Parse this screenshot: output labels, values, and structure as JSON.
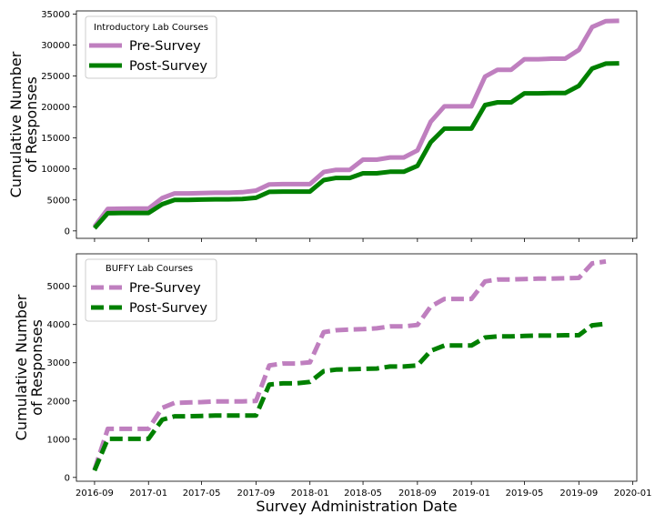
{
  "xlabel": "Survey Administration Date",
  "x_ticks": [
    "2016-09",
    "2017-01",
    "2017-05",
    "2017-09",
    "2018-01",
    "2018-05",
    "2018-09",
    "2019-01",
    "2019-05",
    "2019-09",
    "2020-01"
  ],
  "chart_data": [
    {
      "type": "line",
      "legend_title": "Introductory Lab Courses",
      "legend_position": "top-left",
      "ylabel_line1": "Cumulative Number",
      "ylabel_line2": "of Responses",
      "ylim": [
        -1200,
        35500
      ],
      "y_ticks": [
        0,
        5000,
        10000,
        15000,
        20000,
        25000,
        30000,
        35000
      ],
      "y_tick_labels": [
        "0",
        "5000",
        "10000",
        "15000",
        "20000",
        "25000",
        "30000",
        "35000"
      ],
      "xlim": [
        "2016-07-22",
        "2020-01-10"
      ],
      "grid": false,
      "series": [
        {
          "name": "Pre-Survey",
          "color": "#bf7fbf",
          "dash": "solid",
          "points": [
            [
              "2016-09-01",
              700
            ],
            [
              "2016-10-01",
              3550
            ],
            [
              "2016-11-01",
              3580
            ],
            [
              "2016-12-01",
              3600
            ],
            [
              "2017-01-01",
              3600
            ],
            [
              "2017-02-01",
              5300
            ],
            [
              "2017-03-01",
              6050
            ],
            [
              "2017-04-01",
              6050
            ],
            [
              "2017-05-01",
              6100
            ],
            [
              "2017-06-01",
              6150
            ],
            [
              "2017-07-01",
              6150
            ],
            [
              "2017-08-01",
              6250
            ],
            [
              "2017-09-01",
              6500
            ],
            [
              "2017-10-01",
              7500
            ],
            [
              "2017-11-01",
              7550
            ],
            [
              "2017-12-01",
              7550
            ],
            [
              "2018-01-01",
              7550
            ],
            [
              "2018-02-01",
              9500
            ],
            [
              "2018-03-01",
              9850
            ],
            [
              "2018-04-01",
              9850
            ],
            [
              "2018-05-01",
              11500
            ],
            [
              "2018-06-01",
              11500
            ],
            [
              "2018-07-01",
              11850
            ],
            [
              "2018-08-01",
              11850
            ],
            [
              "2018-09-01",
              13000
            ],
            [
              "2018-10-01",
              17600
            ],
            [
              "2018-11-01",
              20100
            ],
            [
              "2018-12-01",
              20100
            ],
            [
              "2019-01-01",
              20100
            ],
            [
              "2019-02-01",
              24900
            ],
            [
              "2019-03-01",
              26000
            ],
            [
              "2019-04-01",
              26000
            ],
            [
              "2019-05-01",
              27700
            ],
            [
              "2019-06-01",
              27700
            ],
            [
              "2019-07-01",
              27800
            ],
            [
              "2019-08-01",
              27800
            ],
            [
              "2019-09-01",
              29200
            ],
            [
              "2019-10-01",
              32900
            ],
            [
              "2019-11-01",
              33850
            ],
            [
              "2019-12-01",
              33900
            ]
          ]
        },
        {
          "name": "Post-Survey",
          "color": "#008000",
          "dash": "solid",
          "points": [
            [
              "2016-09-01",
              450
            ],
            [
              "2016-10-01",
              2850
            ],
            [
              "2016-11-01",
              2900
            ],
            [
              "2016-12-01",
              2900
            ],
            [
              "2017-01-01",
              2900
            ],
            [
              "2017-02-01",
              4300
            ],
            [
              "2017-03-01",
              5000
            ],
            [
              "2017-04-01",
              5000
            ],
            [
              "2017-05-01",
              5050
            ],
            [
              "2017-06-01",
              5100
            ],
            [
              "2017-07-01",
              5100
            ],
            [
              "2017-08-01",
              5150
            ],
            [
              "2017-09-01",
              5350
            ],
            [
              "2017-10-01",
              6300
            ],
            [
              "2017-11-01",
              6350
            ],
            [
              "2017-12-01",
              6350
            ],
            [
              "2018-01-01",
              6350
            ],
            [
              "2018-02-01",
              8200
            ],
            [
              "2018-03-01",
              8550
            ],
            [
              "2018-04-01",
              8550
            ],
            [
              "2018-05-01",
              9300
            ],
            [
              "2018-06-01",
              9300
            ],
            [
              "2018-07-01",
              9550
            ],
            [
              "2018-08-01",
              9550
            ],
            [
              "2018-09-01",
              10500
            ],
            [
              "2018-10-01",
              14300
            ],
            [
              "2018-11-01",
              16500
            ],
            [
              "2018-12-01",
              16500
            ],
            [
              "2019-01-01",
              16500
            ],
            [
              "2019-02-01",
              20300
            ],
            [
              "2019-03-01",
              20750
            ],
            [
              "2019-04-01",
              20750
            ],
            [
              "2019-05-01",
              22200
            ],
            [
              "2019-06-01",
              22200
            ],
            [
              "2019-07-01",
              22250
            ],
            [
              "2019-08-01",
              22250
            ],
            [
              "2019-09-01",
              23400
            ],
            [
              "2019-10-01",
              26200
            ],
            [
              "2019-11-01",
              27000
            ],
            [
              "2019-12-01",
              27050
            ]
          ]
        }
      ]
    },
    {
      "type": "line",
      "legend_title": "BUFFY Lab Courses",
      "legend_position": "top-left",
      "ylabel_line1": "Cumulative Number",
      "ylabel_line2": "of Responses",
      "ylim": [
        -100,
        5850
      ],
      "y_ticks": [
        0,
        1000,
        2000,
        3000,
        4000,
        5000
      ],
      "y_tick_labels": [
        "0",
        "1000",
        "2000",
        "3000",
        "4000",
        "5000"
      ],
      "xlim": [
        "2016-07-22",
        "2020-01-10"
      ],
      "grid": false,
      "series": [
        {
          "name": "Pre-Survey",
          "color": "#bf7fbf",
          "dash": "dashed",
          "points": [
            [
              "2016-09-01",
              200
            ],
            [
              "2016-10-01",
              1270
            ],
            [
              "2016-11-01",
              1270
            ],
            [
              "2016-12-01",
              1270
            ],
            [
              "2017-01-01",
              1270
            ],
            [
              "2017-02-01",
              1820
            ],
            [
              "2017-03-01",
              1950
            ],
            [
              "2017-04-01",
              1960
            ],
            [
              "2017-05-01",
              1970
            ],
            [
              "2017-06-01",
              1990
            ],
            [
              "2017-07-01",
              1990
            ],
            [
              "2017-08-01",
              1990
            ],
            [
              "2017-09-01",
              2000
            ],
            [
              "2017-10-01",
              2930
            ],
            [
              "2017-11-01",
              2980
            ],
            [
              "2017-12-01",
              2980
            ],
            [
              "2018-01-01",
              3010
            ],
            [
              "2018-02-01",
              3800
            ],
            [
              "2018-03-01",
              3850
            ],
            [
              "2018-04-01",
              3870
            ],
            [
              "2018-05-01",
              3880
            ],
            [
              "2018-06-01",
              3900
            ],
            [
              "2018-07-01",
              3950
            ],
            [
              "2018-08-01",
              3950
            ],
            [
              "2018-09-01",
              3990
            ],
            [
              "2018-10-01",
              4470
            ],
            [
              "2018-11-01",
              4670
            ],
            [
              "2018-12-01",
              4670
            ],
            [
              "2019-01-01",
              4670
            ],
            [
              "2019-02-01",
              5130
            ],
            [
              "2019-03-01",
              5180
            ],
            [
              "2019-04-01",
              5180
            ],
            [
              "2019-05-01",
              5190
            ],
            [
              "2019-06-01",
              5200
            ],
            [
              "2019-07-01",
              5200
            ],
            [
              "2019-08-01",
              5210
            ],
            [
              "2019-09-01",
              5220
            ],
            [
              "2019-10-01",
              5600
            ],
            [
              "2019-11-01",
              5650
            ]
          ]
        },
        {
          "name": "Post-Survey",
          "color": "#008000",
          "dash": "dashed",
          "points": [
            [
              "2016-09-01",
              180
            ],
            [
              "2016-10-01",
              1010
            ],
            [
              "2016-11-01",
              1010
            ],
            [
              "2016-12-01",
              1010
            ],
            [
              "2017-01-01",
              1010
            ],
            [
              "2017-02-01",
              1510
            ],
            [
              "2017-03-01",
              1600
            ],
            [
              "2017-04-01",
              1600
            ],
            [
              "2017-05-01",
              1610
            ],
            [
              "2017-06-01",
              1620
            ],
            [
              "2017-07-01",
              1620
            ],
            [
              "2017-08-01",
              1620
            ],
            [
              "2017-09-01",
              1620
            ],
            [
              "2017-10-01",
              2430
            ],
            [
              "2017-11-01",
              2460
            ],
            [
              "2017-12-01",
              2460
            ],
            [
              "2018-01-01",
              2500
            ],
            [
              "2018-02-01",
              2780
            ],
            [
              "2018-03-01",
              2820
            ],
            [
              "2018-04-01",
              2830
            ],
            [
              "2018-05-01",
              2840
            ],
            [
              "2018-06-01",
              2850
            ],
            [
              "2018-07-01",
              2900
            ],
            [
              "2018-08-01",
              2900
            ],
            [
              "2018-09-01",
              2930
            ],
            [
              "2018-10-01",
              3310
            ],
            [
              "2018-11-01",
              3450
            ],
            [
              "2018-12-01",
              3450
            ],
            [
              "2019-01-01",
              3450
            ],
            [
              "2019-02-01",
              3660
            ],
            [
              "2019-03-01",
              3690
            ],
            [
              "2019-04-01",
              3690
            ],
            [
              "2019-05-01",
              3700
            ],
            [
              "2019-06-01",
              3710
            ],
            [
              "2019-07-01",
              3710
            ],
            [
              "2019-08-01",
              3720
            ],
            [
              "2019-09-01",
              3720
            ],
            [
              "2019-10-01",
              3980
            ],
            [
              "2019-11-01",
              4020
            ]
          ]
        }
      ]
    }
  ]
}
